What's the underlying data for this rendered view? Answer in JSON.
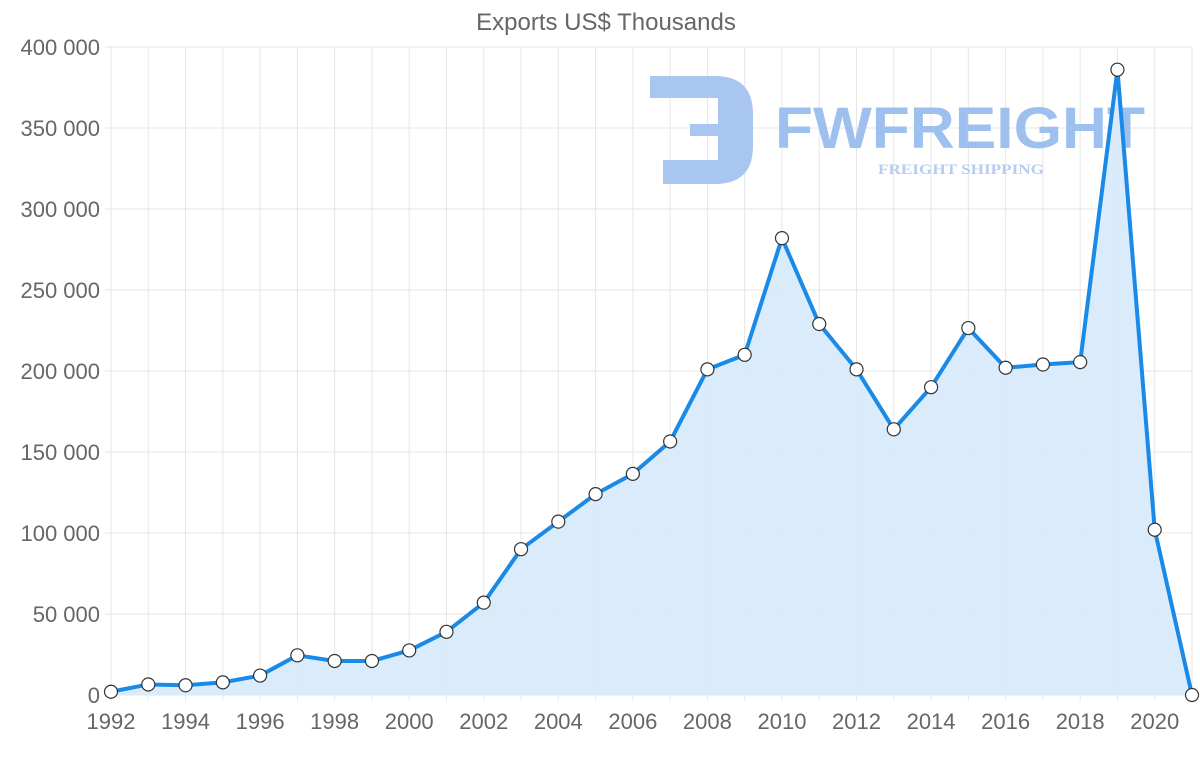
{
  "chart_data": {
    "type": "area",
    "title": "Exports US$ Thousands",
    "xlabel": "",
    "ylabel": "",
    "x": [
      1992,
      1993,
      1994,
      1995,
      1996,
      1997,
      1998,
      1999,
      2000,
      2001,
      2002,
      2003,
      2004,
      2005,
      2006,
      2007,
      2008,
      2009,
      2010,
      2011,
      2012,
      2013,
      2014,
      2015,
      2016,
      2017,
      2018,
      2019,
      2020,
      2021
    ],
    "series": [
      {
        "name": "Exports US$ Thousands",
        "values": [
          2000,
          6500,
          6000,
          7800,
          12000,
          24500,
          21000,
          21000,
          27500,
          39000,
          57000,
          90000,
          107000,
          124000,
          136500,
          156500,
          201000,
          210000,
          282000,
          229000,
          201000,
          164000,
          190000,
          226500,
          202000,
          204000,
          205500,
          386000,
          102000,
          0
        ]
      }
    ],
    "ylim": [
      0,
      400000
    ],
    "yticks": [
      0,
      50000,
      100000,
      150000,
      200000,
      250000,
      300000,
      350000,
      400000
    ],
    "ytick_labels": [
      "0",
      "50 000",
      "100 000",
      "150 000",
      "200 000",
      "250 000",
      "300 000",
      "350 000",
      "400 000"
    ],
    "xtick_labels": [
      "1992",
      "1994",
      "1996",
      "1998",
      "2000",
      "2002",
      "2004",
      "2006",
      "2008",
      "2010",
      "2012",
      "2014",
      "2016",
      "2018",
      "2020"
    ],
    "grid": true,
    "line_color": "#1a8ae8",
    "fill_color": "#d8ebfb"
  },
  "watermark": {
    "brand": "FWFREIGHT",
    "tagline": "FREIGHT SHIPPING",
    "color": "#9ec0ee"
  }
}
